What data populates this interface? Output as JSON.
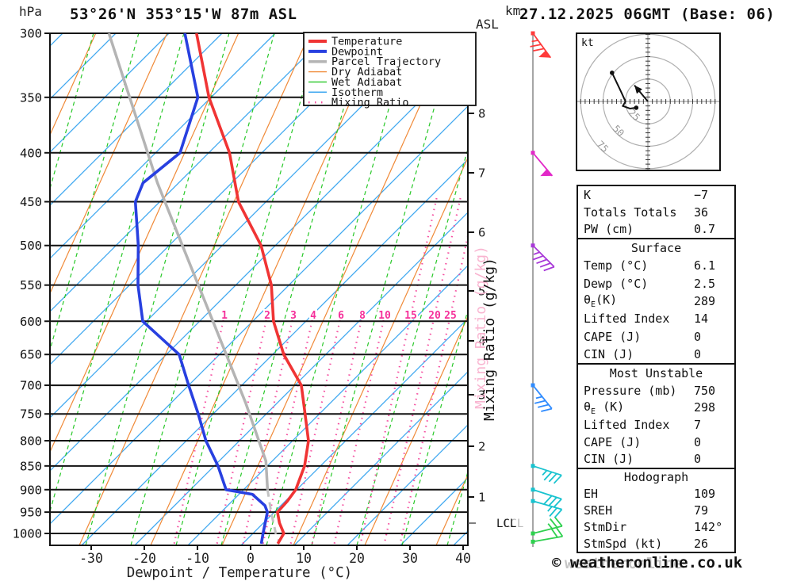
{
  "header": {
    "station_title": "53°26'N 353°15'W 87m ASL",
    "datetime_title": "27.12.2025 06GMT (Base: 06)",
    "pressure_unit": "hPa",
    "height_unit_line1": "km",
    "height_unit_line2": "ASL"
  },
  "watermark": {
    "copyright": "© weatheronline.co.uk",
    "ghost": "weatheronline"
  },
  "legend": {
    "items": [
      {
        "label": "Temperature",
        "color": "#f03434",
        "width": 4,
        "dash": ""
      },
      {
        "label": "Dewpoint",
        "color": "#2840e0",
        "width": 4,
        "dash": ""
      },
      {
        "label": "Parcel Trajectory",
        "color": "#b4b4b4",
        "width": 3.5,
        "dash": ""
      },
      {
        "label": "Dry Adiabat",
        "color": "#f08a38",
        "width": 1.4,
        "dash": ""
      },
      {
        "label": "Wet Adiabat",
        "color": "#28c828",
        "width": 1.4,
        "dash": ""
      },
      {
        "label": "Isotherm",
        "color": "#3fa8f0",
        "width": 1.4,
        "dash": ""
      },
      {
        "label": "Mixing Ratio",
        "color": "#f54fa0",
        "width": 2.5,
        "dash": "1.5 6.5"
      }
    ]
  },
  "axes": {
    "pressure_ticks": [
      300,
      350,
      400,
      450,
      500,
      550,
      600,
      650,
      700,
      750,
      800,
      850,
      900,
      950,
      1000
    ],
    "temp_ticks": [
      -30,
      -20,
      -10,
      0,
      10,
      20,
      30,
      40
    ],
    "xlabel": "Dewpoint / Temperature (°C)",
    "km_ticks": [
      8,
      7,
      6,
      5,
      4,
      3,
      2,
      1
    ],
    "lcl_label": "LCL",
    "mixing_axis_label": "Mixing Ratio (g/kg)"
  },
  "chart_data": {
    "type": "line",
    "variant": "skew-t log-p sounding",
    "pressure_range_hpa": [
      300,
      1000
    ],
    "temperature_range_c": [
      -30,
      40
    ],
    "grid": true,
    "legend_position": "top-right",
    "mixing_ratio_labels_gkg": [
      1,
      2,
      3,
      4,
      6,
      8,
      10,
      15,
      20,
      25
    ],
    "series": [
      {
        "name": "Temperature",
        "units": "°C vs hPa",
        "points": [
          [
            300,
            -104.8
          ],
          [
            350,
            -90.4
          ],
          [
            400,
            -76.1
          ],
          [
            450,
            -65.2
          ],
          [
            500,
            -52.7
          ],
          [
            550,
            -43.3
          ],
          [
            600,
            -36.1
          ],
          [
            650,
            -27.9
          ],
          [
            700,
            -18.8
          ],
          [
            750,
            -12.7
          ],
          [
            800,
            -7.0
          ],
          [
            850,
            -3.0
          ],
          [
            900,
            -0.2
          ],
          [
            925,
            0.4
          ],
          [
            950,
            0.6
          ],
          [
            975,
            3.0
          ],
          [
            1000,
            5.8
          ],
          [
            1025,
            6.6
          ]
        ]
      },
      {
        "name": "Dewpoint",
        "units": "°C vs hPa",
        "points": [
          [
            300,
            -107.0
          ],
          [
            350,
            -92.5
          ],
          [
            400,
            -85.4
          ],
          [
            430,
            -86.7
          ],
          [
            450,
            -84.6
          ],
          [
            500,
            -75.8
          ],
          [
            550,
            -68.4
          ],
          [
            600,
            -60.7
          ],
          [
            650,
            -47.6
          ],
          [
            700,
            -40.0
          ],
          [
            750,
            -32.8
          ],
          [
            800,
            -26.3
          ],
          [
            850,
            -19.3
          ],
          [
            900,
            -13.3
          ],
          [
            910,
            -7.5
          ],
          [
            935,
            -3.0
          ],
          [
            950,
            -1.3
          ],
          [
            1000,
            1.9
          ],
          [
            1025,
            3.5
          ]
        ]
      },
      {
        "name": "Parcel Trajectory",
        "units": "°C vs hPa",
        "dashed_below_p": 900,
        "points": [
          [
            300,
            -121.3
          ],
          [
            430,
            -84.0
          ],
          [
            500,
            -67.5
          ],
          [
            600,
            -47.5
          ],
          [
            730,
            -26.0
          ],
          [
            840,
            -11.2
          ],
          [
            900,
            -5.5
          ],
          [
            950,
            -0.6
          ],
          [
            1000,
            4.3
          ],
          [
            1020,
            6.5
          ]
        ]
      }
    ],
    "wind_barbs": [
      {
        "p": 300,
        "color": "#ff3b3b",
        "angle": 54,
        "pennants": 1,
        "full": 2,
        "half": 1,
        "side": 1
      },
      {
        "p": 400,
        "color": "#e228c8",
        "angle": 50,
        "pennants": 1,
        "full": 0,
        "half": 0,
        "side": 1
      },
      {
        "p": 500,
        "color": "#a838d8",
        "angle": 45,
        "pennants": 0,
        "full": 4,
        "half": 1,
        "side": 1
      },
      {
        "p": 700,
        "color": "#2e8bff",
        "angle": 51,
        "pennants": 0,
        "full": 3,
        "half": 1,
        "side": 1
      },
      {
        "p": 850,
        "color": "#18c3cf",
        "angle": 18,
        "pennants": 0,
        "full": 3,
        "half": 1,
        "side": 1
      },
      {
        "p": 900,
        "color": "#18c3cf",
        "angle": 18,
        "pennants": 0,
        "full": 3,
        "half": 0,
        "side": 1
      },
      {
        "p": 925,
        "color": "#18c3cf",
        "angle": 16,
        "pennants": 0,
        "full": 2,
        "half": 1,
        "side": 1
      },
      {
        "p": 1000,
        "color": "#2ed04e",
        "angle": -14,
        "pennants": 0,
        "full": 2,
        "half": 1,
        "side": -1
      },
      {
        "p": 1020,
        "color": "#2ed04e",
        "angle": -10,
        "pennants": 0,
        "full": 2,
        "half": 0,
        "side": -1
      }
    ],
    "hodograph": {
      "unit_label": "kt",
      "ring_labels": [
        "25",
        "50",
        "75"
      ],
      "ring_radii_kt": [
        25,
        50,
        75
      ],
      "trace_uv_kt": [
        [
          -40,
          32
        ],
        [
          -30,
          11
        ],
        [
          -25,
          0
        ],
        [
          -28,
          -5
        ],
        [
          -20,
          -8
        ],
        [
          -13,
          -7
        ]
      ],
      "endpoint_dots_uv_kt": [
        [
          -40,
          32
        ],
        [
          -13,
          -7
        ]
      ],
      "storm_motion_arrow_uv_kt": {
        "from": [
          0,
          0
        ],
        "to": [
          -15,
          18
        ]
      }
    }
  },
  "tables": {
    "sections": [
      {
        "header": null,
        "rows": [
          [
            "K",
            "−7"
          ],
          [
            "Totals Totals",
            "36"
          ],
          [
            "PW (cm)",
            "0.7"
          ]
        ]
      },
      {
        "header": "Surface",
        "rows": [
          [
            "Temp (°C)",
            "6.1"
          ],
          [
            "Dewp (°C)",
            "2.5"
          ],
          [
            "θE(K)",
            "289"
          ],
          [
            "Lifted Index",
            "14"
          ],
          [
            "CAPE (J)",
            "0"
          ],
          [
            "CIN (J)",
            "0"
          ]
        ]
      },
      {
        "header": "Most Unstable",
        "rows": [
          [
            "Pressure (mb)",
            "750"
          ],
          [
            "θE (K)",
            "298"
          ],
          [
            "Lifted Index",
            "7"
          ],
          [
            "CAPE (J)",
            "0"
          ],
          [
            "CIN (J)",
            "0"
          ]
        ]
      },
      {
        "header": "Hodograph",
        "rows": [
          [
            "EH",
            "109"
          ],
          [
            "SREH",
            "79"
          ],
          [
            "StmDir",
            "142°"
          ],
          [
            "StmSpd (kt)",
            "26"
          ]
        ]
      }
    ]
  }
}
